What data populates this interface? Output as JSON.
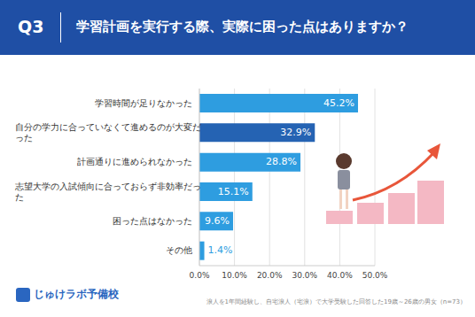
{
  "chart_data": {
    "type": "bar",
    "orientation": "horizontal",
    "header_label": "Q3",
    "title": "学習計画を実行する際、実際に困った点はありますか？",
    "categories": [
      "学習時間が足りなかった",
      "自分の学力に合っていなくて進めるのが大変だった",
      "計画通りに進められなかった",
      "志望大学の入試傾向に合っておらず非効率だった",
      "困った点はなかった",
      "その他"
    ],
    "values": [
      45.2,
      32.9,
      28.8,
      15.1,
      9.6,
      1.4
    ],
    "value_labels": [
      "45.2%",
      "32.9%",
      "28.8%",
      "15.1%",
      "9.6%",
      "1.4%"
    ],
    "colors": [
      "#2e9de0",
      "#2563b3",
      "#2e9de0",
      "#2e9de0",
      "#2e9de0",
      "#2e9de0"
    ],
    "xlim": [
      0,
      50
    ],
    "xticks": [
      {
        "value": 0,
        "label": "0.0%"
      },
      {
        "value": 10,
        "label": "10.0%"
      },
      {
        "value": 20,
        "label": "20.0%"
      },
      {
        "value": 30,
        "label": "30.0%"
      },
      {
        "value": 40,
        "label": "40.0%"
      },
      {
        "value": 50,
        "label": "50.0%"
      }
    ],
    "grid": true,
    "data_labels": true,
    "note": "浪人を1年間経験し、自宅浪人（宅浪）で大学受験した回答した19歳～26歳の男女（n=73）",
    "brand": "じゅけラボ予備校"
  }
}
